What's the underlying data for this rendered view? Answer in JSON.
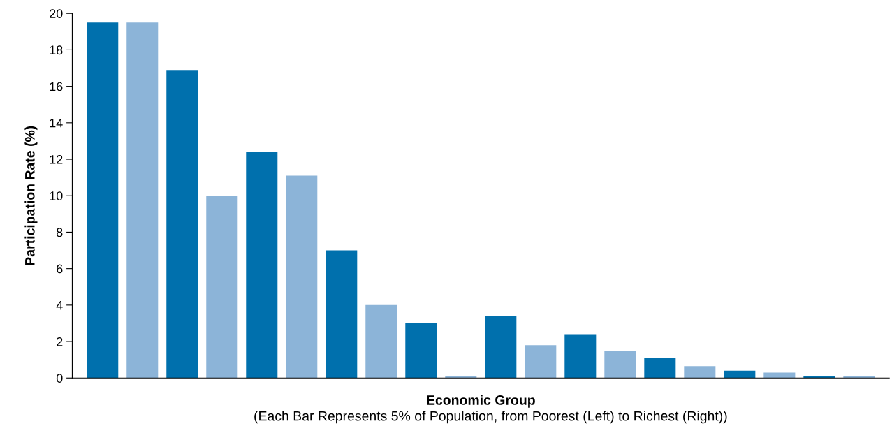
{
  "chart_data": {
    "type": "bar",
    "xlabel": "Economic Group",
    "ylabel": "Participation Rate (%)",
    "annotations": [
      "(Each Bar Represents 5% of Population, from Poorest (Left) to Richest (Right))"
    ],
    "categories": [
      null,
      null,
      null,
      null,
      null,
      null,
      null,
      null,
      null,
      null,
      null,
      null,
      null,
      null,
      null,
      null,
      null,
      null,
      null,
      null
    ],
    "values": [
      19.5,
      19.5,
      16.9,
      10.0,
      12.4,
      11.1,
      7.0,
      4.0,
      3.0,
      0.1,
      3.4,
      1.8,
      2.4,
      1.5,
      1.1,
      0.65,
      0.4,
      0.3,
      0.1,
      0.1
    ],
    "colors": [
      "#0070ad",
      "#8cb4d8",
      "#0070ad",
      "#8cb4d8",
      "#0070ad",
      "#8cb4d8",
      "#0070ad",
      "#8cb4d8",
      "#0070ad",
      "#8cb4d8",
      "#0070ad",
      "#8cb4d8",
      "#0070ad",
      "#8cb4d8",
      "#0070ad",
      "#8cb4d8",
      "#0070ad",
      "#8cb4d8",
      "#0070ad",
      "#8cb4d8"
    ],
    "ylim": [
      0,
      20
    ],
    "yticks": [
      0,
      2,
      4,
      6,
      8,
      10,
      12,
      14,
      16,
      18,
      20
    ],
    "grid": false,
    "legend": false
  }
}
